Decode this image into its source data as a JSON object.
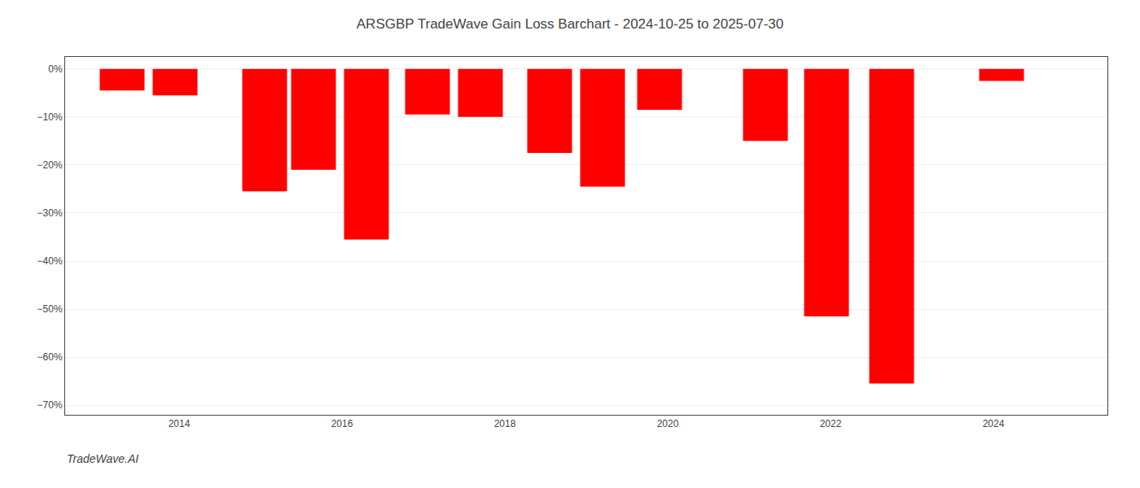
{
  "chart_data": {
    "type": "bar",
    "title": "ARSGBP TradeWave Gain Loss Barchart - 2024-10-25 to 2025-07-30",
    "x": [
      2013.3,
      2013.95,
      2015.05,
      2015.65,
      2016.3,
      2017.05,
      2017.7,
      2018.55,
      2019.2,
      2019.9,
      2021.2,
      2021.95,
      2022.75,
      2024.1
    ],
    "values": [
      -4.5,
      -5.5,
      -25.5,
      -21.0,
      -35.5,
      -9.5,
      -10.0,
      -17.5,
      -24.5,
      -8.5,
      -15.0,
      -51.5,
      -65.5,
      -2.5
    ],
    "color": "#ff0000",
    "xlim": [
      2012.6,
      2025.4
    ],
    "xticks": [
      2014,
      2016,
      2018,
      2020,
      2022,
      2024
    ],
    "ylim": [
      -72,
      2.5
    ],
    "yticks": [
      {
        "value": 0,
        "label": "0%"
      },
      {
        "value": -10,
        "label": "−10%"
      },
      {
        "value": -20,
        "label": "−20%"
      },
      {
        "value": -30,
        "label": "−30%"
      },
      {
        "value": -40,
        "label": "−40%"
      },
      {
        "value": -50,
        "label": "−50%"
      },
      {
        "value": -60,
        "label": "−60%"
      },
      {
        "value": -70,
        "label": "−70%"
      }
    ],
    "grid": true,
    "annotations": [
      "TradeWave.AI"
    ]
  }
}
